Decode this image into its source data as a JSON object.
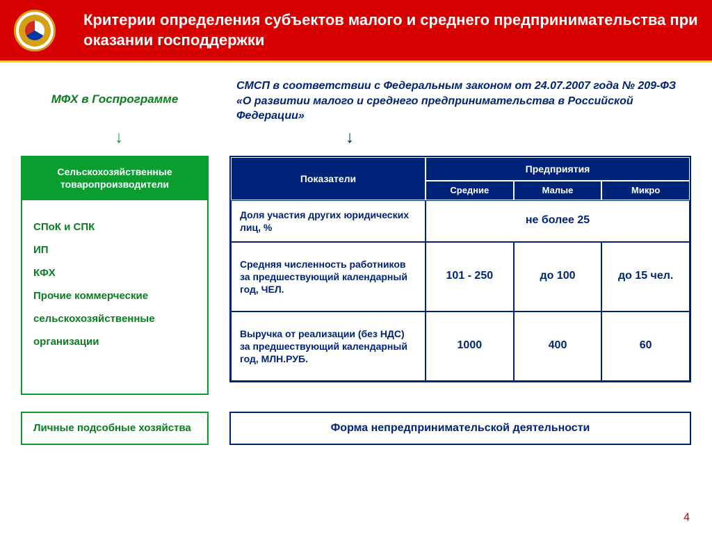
{
  "header": {
    "title": "Критерии определения субъектов малого и среднего предпринимательства при оказании господдержки"
  },
  "intro": {
    "left": "МФХ в Госпрограмме",
    "right": "СМСП в соответствии с Федеральным законом от 24.07.2007 года № 209-ФЗ «О развитии малого и среднего предпринимательства в Российской Федерации»"
  },
  "left_block": {
    "heading": "Сельскохозяйственные товаропроизводители",
    "items": [
      "СПоК и СПК",
      "ИП",
      "КФХ",
      "Прочие коммерческие",
      "сельскохозяйственные",
      "организации"
    ]
  },
  "table": {
    "head": {
      "indicators": "Показатели",
      "enterprises": "Предприятия",
      "cols": [
        "Средние",
        "Малые",
        "Микро"
      ]
    },
    "rows": [
      {
        "label": "Доля участия других юридических лиц, %",
        "span_value": "не более 25"
      },
      {
        "label": "Средняя численность работников за предшествующий календарный год, ЧЕЛ.",
        "values": [
          "101 - 250",
          "до 100",
          "до 15 чел."
        ]
      },
      {
        "label": "Выручка от реализации (без НДС) за предшествующий календарный год, МЛН.РУБ.",
        "values": [
          "1000",
          "400",
          "60"
        ]
      }
    ]
  },
  "footer": {
    "left": "Личные подсобные хозяйства",
    "right": "Форма непредпринимательской деятельности"
  },
  "page_number": "4",
  "colors": {
    "red": "#d70000",
    "blue": "#00237a",
    "green": "#0a9d2f",
    "green_text": "#0a7d1f"
  }
}
